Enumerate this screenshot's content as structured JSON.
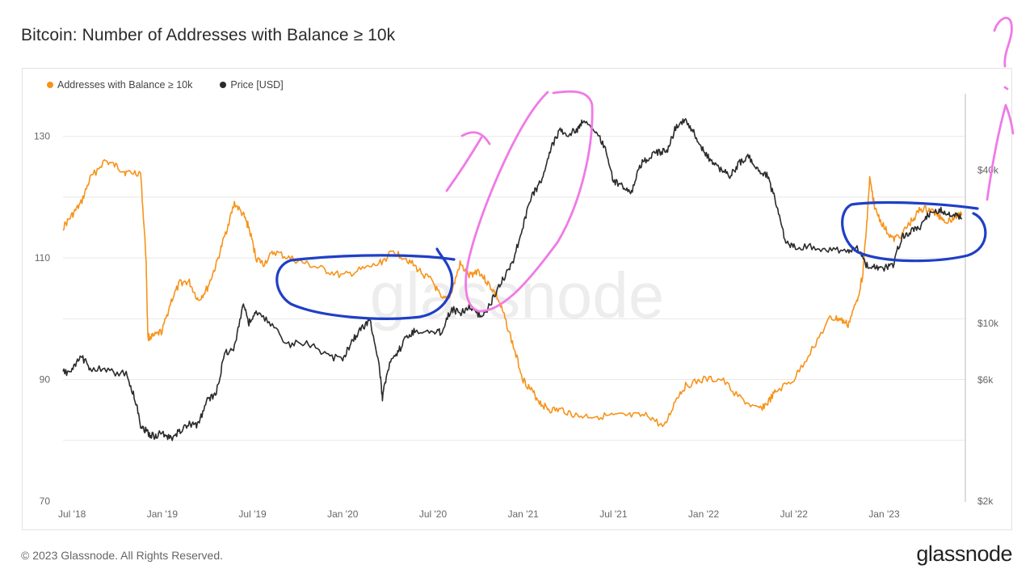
{
  "title": "Bitcoin: Number of Addresses with Balance ≥ 10k",
  "footer": "© 2023 Glassnode. All Rights Reserved.",
  "brand": "glassnode",
  "watermark": "glassnode",
  "colors": {
    "addresses": "#f7931a",
    "price": "#2b2b2b",
    "blue_annotation": "#1f3fc6",
    "pink_annotation": "#f07ae6",
    "grid": "#e8e8e8"
  },
  "legend": [
    {
      "label": "Addresses with Balance ≥ 10k",
      "color": "#f7931a"
    },
    {
      "label": "Price [USD]",
      "color": "#2b2b2b"
    }
  ],
  "chart_data": {
    "type": "line",
    "title": "Bitcoin: Number of Addresses with Balance ≥ 10k",
    "x_ticks": [
      "Jul '18",
      "Jan '19",
      "Jul '19",
      "Jan '20",
      "Jul '20",
      "Jan '21",
      "Jul '21",
      "Jan '22",
      "Jul '22",
      "Jan '23"
    ],
    "x_range": [
      2018.45,
      2023.45
    ],
    "y_left": {
      "ticks": [
        "130",
        "110",
        "90",
        "70"
      ],
      "tick_values": [
        130,
        110,
        90,
        70
      ],
      "range": [
        70,
        137
      ]
    },
    "y_right": {
      "scale": "log",
      "ticks": [
        "$40k",
        "$10k",
        "$6k",
        "$2k"
      ],
      "tick_values": [
        40000,
        10000,
        6000,
        2000
      ],
      "range": [
        2000,
        80000
      ]
    },
    "series": [
      {
        "name": "Addresses with Balance ≥ 10k",
        "axis": "left",
        "x": [
          2018.45,
          2018.5,
          2018.55,
          2018.6,
          2018.68,
          2018.75,
          2018.8,
          2018.88,
          2018.91,
          2018.92,
          2018.95,
          2019.0,
          2019.05,
          2019.1,
          2019.15,
          2019.2,
          2019.25,
          2019.3,
          2019.35,
          2019.4,
          2019.45,
          2019.48,
          2019.52,
          2019.56,
          2019.62,
          2019.7,
          2019.8,
          2019.9,
          2020.0,
          2020.1,
          2020.2,
          2020.28,
          2020.35,
          2020.42,
          2020.5,
          2020.55,
          2020.6,
          2020.65,
          2020.7,
          2020.75,
          2020.8,
          2020.85,
          2020.9,
          2020.95,
          2021.0,
          2021.05,
          2021.1,
          2021.15,
          2021.22,
          2021.3,
          2021.4,
          2021.5,
          2021.6,
          2021.7,
          2021.78,
          2021.85,
          2021.9,
          2022.0,
          2022.1,
          2022.2,
          2022.3,
          2022.35,
          2022.4,
          2022.5,
          2022.6,
          2022.7,
          2022.75,
          2022.8,
          2022.85,
          2022.88,
          2022.9,
          2022.92,
          2022.95,
          2023.0,
          2023.05,
          2023.1,
          2023.15,
          2023.2,
          2023.25,
          2023.3,
          2023.35,
          2023.4,
          2023.43
        ],
        "values": [
          115,
          117,
          119,
          123,
          126,
          125,
          124,
          124,
          110,
          97,
          97,
          98,
          103,
          106,
          106,
          103,
          105,
          109,
          114,
          119,
          117,
          115,
          110,
          109,
          111,
          110,
          109,
          108,
          107,
          108,
          109,
          111,
          110,
          108,
          106,
          103,
          104,
          109,
          107,
          108,
          106,
          104,
          100,
          95,
          90,
          88,
          86,
          85,
          85,
          84,
          84,
          84,
          84,
          84,
          82,
          87,
          89,
          90,
          90,
          87,
          85,
          86,
          88,
          90,
          95,
          100,
          100,
          99,
          103,
          107,
          114,
          123,
          118,
          115,
          113,
          114,
          116,
          118,
          118,
          117,
          116,
          117,
          117
        ]
      },
      {
        "name": "Price [USD]",
        "axis": "right",
        "x": [
          2018.45,
          2018.5,
          2018.55,
          2018.6,
          2018.7,
          2018.8,
          2018.85,
          2018.88,
          2018.92,
          2018.96,
          2019.0,
          2019.05,
          2019.1,
          2019.15,
          2019.2,
          2019.25,
          2019.3,
          2019.35,
          2019.4,
          2019.45,
          2019.48,
          2019.52,
          2019.6,
          2019.7,
          2019.8,
          2019.9,
          2020.0,
          2020.05,
          2020.1,
          2020.15,
          2020.2,
          2020.22,
          2020.25,
          2020.3,
          2020.35,
          2020.4,
          2020.5,
          2020.55,
          2020.6,
          2020.65,
          2020.7,
          2020.75,
          2020.8,
          2020.85,
          2020.9,
          2020.95,
          2021.0,
          2021.05,
          2021.1,
          2021.15,
          2021.2,
          2021.25,
          2021.3,
          2021.33,
          2021.4,
          2021.45,
          2021.5,
          2021.55,
          2021.6,
          2021.65,
          2021.7,
          2021.75,
          2021.8,
          2021.85,
          2021.9,
          2021.95,
          2022.0,
          2022.05,
          2022.1,
          2022.15,
          2022.2,
          2022.25,
          2022.3,
          2022.35,
          2022.4,
          2022.45,
          2022.5,
          2022.6,
          2022.7,
          2022.8,
          2022.85,
          2022.9,
          2022.95,
          2023.0,
          2023.05,
          2023.1,
          2023.15,
          2023.2,
          2023.25,
          2023.3,
          2023.35,
          2023.4,
          2023.43
        ],
        "values": [
          6400,
          6500,
          7400,
          6700,
          6500,
          6300,
          5000,
          4000,
          3700,
          3600,
          3700,
          3500,
          3800,
          4000,
          4000,
          5000,
          5300,
          7700,
          8000,
          12000,
          10000,
          11000,
          10000,
          8200,
          8500,
          7500,
          7200,
          8500,
          9500,
          10300,
          7000,
          5000,
          6700,
          7500,
          8800,
          9400,
          9200,
          9300,
          11400,
          11000,
          11700,
          10700,
          11200,
          13200,
          15500,
          18000,
          24000,
          32000,
          36000,
          48000,
          57000,
          55000,
          58000,
          63000,
          56000,
          50000,
          36000,
          35000,
          33000,
          42000,
          45000,
          47000,
          48000,
          60000,
          63000,
          56000,
          47000,
          43000,
          40000,
          38000,
          43000,
          45000,
          40000,
          38000,
          30000,
          21000,
          20000,
          20000,
          19500,
          19000,
          20000,
          17000,
          16500,
          16500,
          17000,
          22000,
          23000,
          24000,
          27000,
          28000,
          27000,
          26500,
          26000
        ]
      }
    ]
  }
}
